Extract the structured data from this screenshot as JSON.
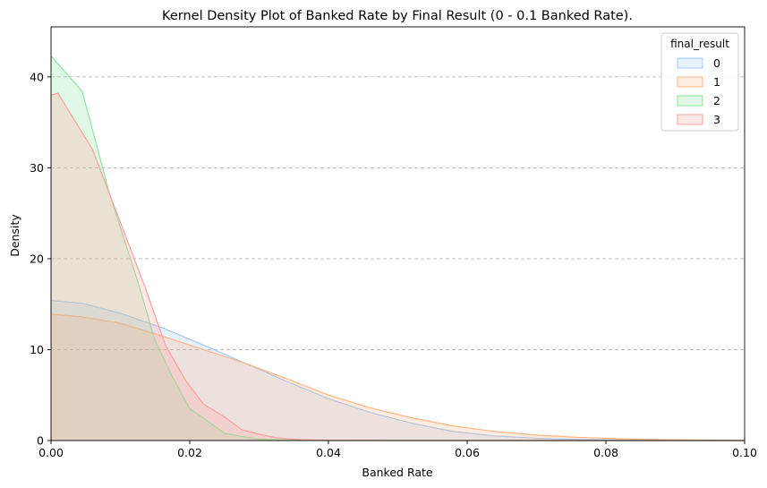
{
  "chart_data": {
    "type": "area",
    "title": "Kernel Density Plot of Banked Rate by Final Result (0 - 0.1 Banked Rate).",
    "xlabel": "Banked Rate",
    "ylabel": "Density",
    "xlim": [
      0,
      0.1
    ],
    "ylim": [
      0,
      45.5
    ],
    "x_ticks": [
      0.0,
      0.02,
      0.04,
      0.06,
      0.08,
      0.1
    ],
    "x_tick_labels": [
      "0.00",
      "0.02",
      "0.04",
      "0.06",
      "0.08",
      "0.10"
    ],
    "y_ticks": [
      0,
      10,
      20,
      30,
      40
    ],
    "y_tick_labels": [
      "0",
      "10",
      "20",
      "30",
      "40"
    ],
    "grid": "y-dashed",
    "legend": {
      "title": "final_result",
      "position": "top-right"
    },
    "series": [
      {
        "name": "0",
        "line_color": "#a1c9f4",
        "fill_color": "#a1c9f4",
        "x": [
          0,
          0.0045,
          0.01,
          0.016,
          0.022,
          0.028,
          0.034,
          0.04,
          0.046,
          0.052,
          0.058,
          0.064,
          0.07,
          0.076,
          0.082,
          0.088,
          0.094,
          0.1
        ],
        "y": [
          15.4,
          15.1,
          14.0,
          12.4,
          10.5,
          8.5,
          6.5,
          4.6,
          3.1,
          1.9,
          1.0,
          0.5,
          0.25,
          0.12,
          0.05,
          0.02,
          0.01,
          0.0
        ]
      },
      {
        "name": "1",
        "line_color": "#ffb482",
        "fill_color": "#ffb482",
        "x": [
          0,
          0.0045,
          0.01,
          0.016,
          0.022,
          0.028,
          0.034,
          0.04,
          0.046,
          0.052,
          0.058,
          0.064,
          0.07,
          0.076,
          0.082,
          0.088,
          0.094,
          0.1
        ],
        "y": [
          13.9,
          13.6,
          12.9,
          11.5,
          10.0,
          8.5,
          6.8,
          5.0,
          3.6,
          2.5,
          1.6,
          1.0,
          0.6,
          0.35,
          0.2,
          0.1,
          0.05,
          0.02
        ]
      },
      {
        "name": "2",
        "line_color": "#8de5a1",
        "fill_color": "#8de5a1",
        "x": [
          0,
          0.0045,
          0.0085,
          0.0125,
          0.015,
          0.0175,
          0.02,
          0.0225,
          0.025,
          0.028,
          0.03,
          0.034,
          0.04,
          0.05,
          0.1
        ],
        "y": [
          42.3,
          38.4,
          27.0,
          17.5,
          11.0,
          7.0,
          3.5,
          2.2,
          0.8,
          0.4,
          0.15,
          0.05,
          0.0,
          0.0,
          0.0
        ]
      },
      {
        "name": "3",
        "line_color": "#ff9f9b",
        "fill_color": "#ff9f9b",
        "x": [
          0,
          0.001,
          0.006,
          0.01,
          0.0135,
          0.0165,
          0.0195,
          0.022,
          0.025,
          0.0275,
          0.03,
          0.0325,
          0.036,
          0.04,
          0.05,
          0.1
        ],
        "y": [
          38.0,
          38.2,
          32.0,
          24.0,
          17.0,
          10.5,
          6.5,
          4.0,
          2.6,
          1.2,
          0.7,
          0.3,
          0.1,
          0.02,
          0.0,
          0.0
        ]
      }
    ]
  }
}
